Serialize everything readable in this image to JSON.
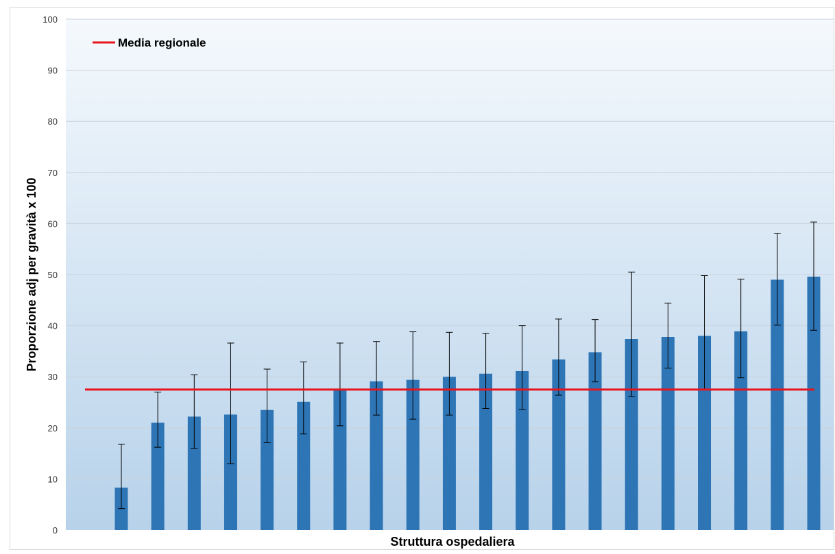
{
  "chart_data": {
    "type": "bar",
    "title": "",
    "xlabel": "Struttura ospedaliera",
    "ylabel": "Proporzione adj per gravità x 100",
    "ylim": [
      0,
      100
    ],
    "yticks": [
      0,
      10,
      20,
      30,
      40,
      50,
      60,
      70,
      80,
      90,
      100
    ],
    "grid": true,
    "legend": {
      "placement": "top-left",
      "entries": [
        "Media regionale"
      ]
    },
    "colors": {
      "bar": "#2e75b6",
      "reference_line": "#e8141b",
      "error_bar": "#000000",
      "gridline": "#c9d3dc",
      "plot_bg_top": "#f5f9fd",
      "plot_bg_bottom": "#b7d2ea"
    },
    "series": [
      {
        "values": [
          8.3,
          21.0,
          22.2,
          22.6,
          23.5,
          25.1,
          27.5,
          29.1,
          29.4,
          30.0,
          30.6,
          31.1,
          33.4,
          34.8,
          37.4,
          37.8,
          38.0,
          38.9,
          49.0,
          49.6
        ],
        "error_low": [
          4.2,
          16.2,
          16.0,
          13.0,
          17.1,
          18.8,
          20.4,
          22.5,
          21.7,
          22.5,
          23.8,
          23.6,
          26.4,
          29.0,
          26.1,
          31.7,
          27.5,
          29.8,
          40.1,
          39.1
        ],
        "error_high": [
          16.8,
          27.0,
          30.4,
          36.6,
          31.5,
          32.9,
          36.6,
          36.9,
          38.8,
          38.7,
          38.5,
          40.0,
          41.3,
          41.2,
          50.5,
          44.4,
          49.8,
          49.1,
          58.1,
          60.3
        ]
      }
    ],
    "reference_line": {
      "name": "Media regionale",
      "value": 27.5
    }
  }
}
